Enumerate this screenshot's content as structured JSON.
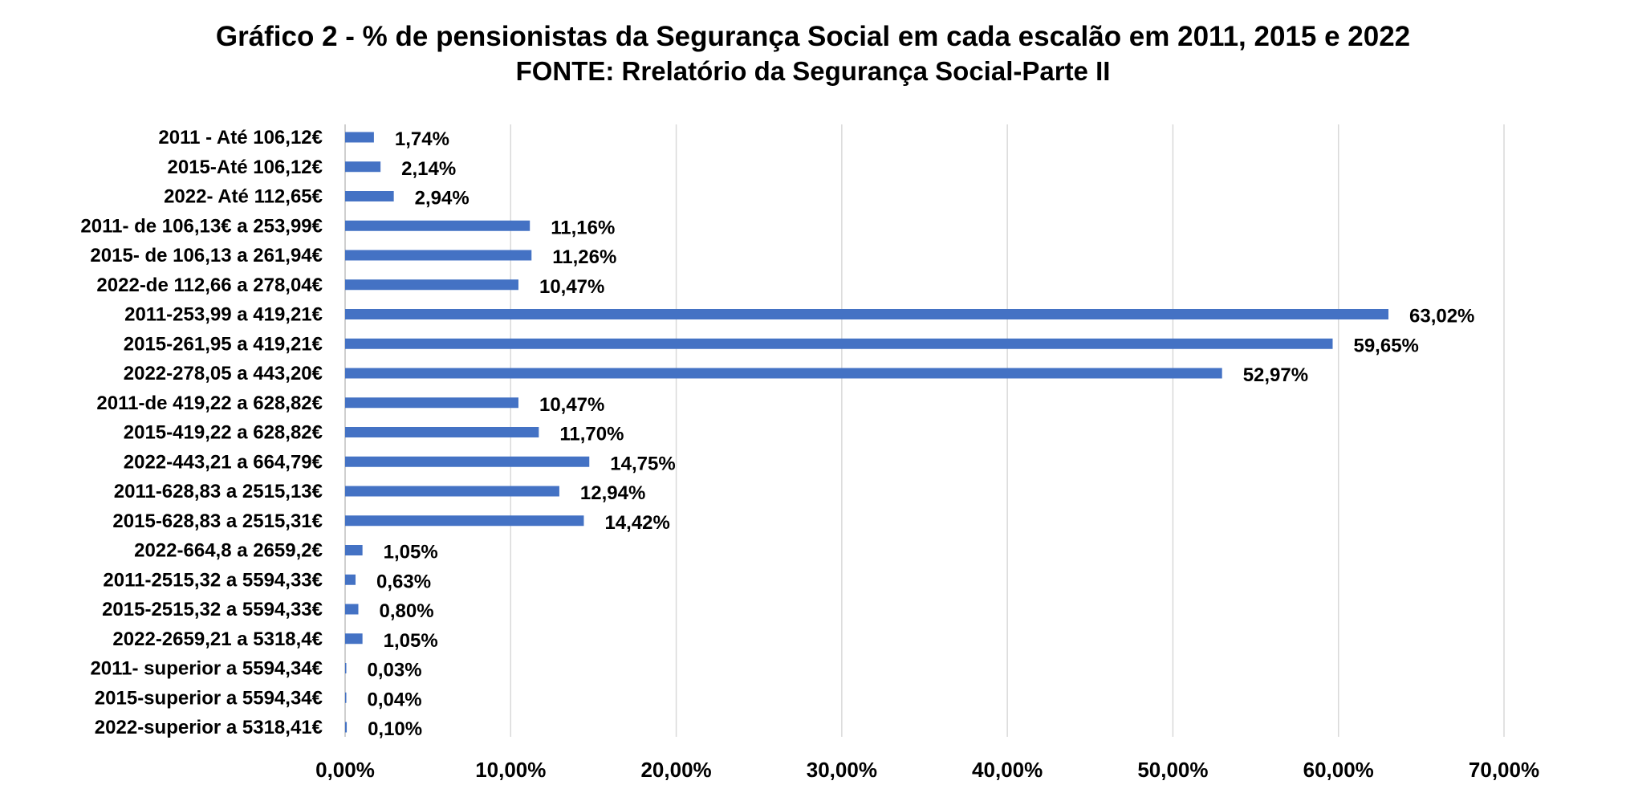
{
  "chart_data": {
    "type": "bar",
    "orientation": "horizontal",
    "title": "Gráfico 2 - % de pensionistas da Segurança Social  em cada escalão em 2011, 2015 e 2022",
    "subtitle": "FONTE: Rrelatório da Segurança Social-Parte II",
    "xlim": [
      0,
      70
    ],
    "grid": true,
    "bar_color": "#4472C4",
    "gridline_color": "#D9D9D9",
    "x_ticks": [
      0,
      10,
      20,
      30,
      40,
      50,
      60,
      70
    ],
    "x_tick_labels": [
      "0,00%",
      "10,00%",
      "20,00%",
      "30,00%",
      "40,00%",
      "50,00%",
      "60,00%",
      "70,00%"
    ],
    "categories": [
      "2011 - Até 106,12€",
      "2015-Até 106,12€",
      "2022- Até 112,65€",
      "2011- de 106,13€ a 253,99€",
      "2015- de 106,13 a 261,94€",
      "2022-de 112,66 a 278,04€",
      "2011-253,99 a 419,21€",
      "2015-261,95 a 419,21€",
      "2022-278,05 a 443,20€",
      "2011-de 419,22 a 628,82€",
      "2015-419,22 a 628,82€",
      "2022-443,21 a 664,79€",
      "2011-628,83 a 2515,13€",
      "2015-628,83 a 2515,31€",
      "2022-664,8 a 2659,2€",
      "2011-2515,32 a 5594,33€",
      "2015-2515,32 a 5594,33€",
      "2022-2659,21 a 5318,4€",
      "2011- superior a 5594,34€",
      "2015-superior a 5594,34€",
      "2022-superior a 5318,41€"
    ],
    "values": [
      1.74,
      2.14,
      2.94,
      11.16,
      11.26,
      10.47,
      63.02,
      59.65,
      52.97,
      10.47,
      11.7,
      14.75,
      12.94,
      14.42,
      1.05,
      0.63,
      0.8,
      1.05,
      0.03,
      0.04,
      0.1
    ],
    "data_labels": [
      "1,74%",
      "2,14%",
      "2,94%",
      "11,16%",
      "11,26%",
      "10,47%",
      "63,02%",
      "59,65%",
      "52,97%",
      "10,47%",
      "11,70%",
      "14,75%",
      "12,94%",
      "14,42%",
      "1,05%",
      "0,63%",
      "0,80%",
      "1,05%",
      "0,03%",
      "0,04%",
      "0,10%"
    ]
  }
}
